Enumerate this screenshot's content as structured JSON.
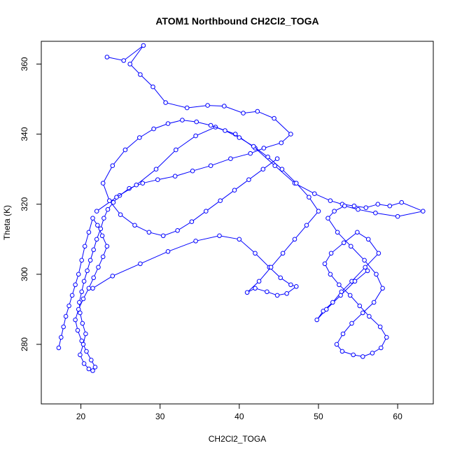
{
  "chart_data": {
    "type": "scatter",
    "title": "ATOM1 Northbound CH2Cl2_TOGA",
    "xlabel": "CH2Cl2_TOGA",
    "ylabel": "Theta (K)",
    "xlim": [
      15,
      64.5
    ],
    "ylim": [
      263,
      366.5
    ],
    "xticks": [
      20,
      30,
      40,
      50,
      60
    ],
    "yticks": [
      280,
      300,
      320,
      340,
      360
    ],
    "grid": false,
    "legend": "none",
    "color": "#0000ff",
    "series": [
      {
        "x": [
          23.3,
          25.4,
          27.9,
          26.2,
          27.5,
          29.1,
          30.7,
          33.4,
          36.0,
          38.1,
          40.5,
          42.3,
          44.4,
          46.5,
          45.3,
          43.1,
          41.4,
          38.9,
          36.4,
          34.1,
          31.9,
          29.7,
          27.8,
          26.1,
          24.9,
          24.1,
          23.4,
          22.9,
          22.5,
          22.0,
          21.6,
          21.2,
          20.8,
          20.4,
          20.1,
          19.8,
          19.9,
          20.2,
          20.6,
          20.3,
          19.9,
          20.4,
          21.0,
          21.5,
          21.8,
          21.3,
          20.7,
          20.1,
          19.6,
          19.3,
          19.7,
          20.3,
          21.0,
          21.6,
          22.2,
          22.8,
          23.3,
          22.7,
          22.1,
          21.5,
          21.0,
          20.5,
          20.1,
          19.7,
          19.3,
          18.9,
          18.5,
          18.1,
          17.8,
          17.5,
          17.2
        ],
        "y": [
          362.0,
          361.0,
          365.3,
          360.0,
          357.0,
          353.5,
          349.0,
          347.5,
          348.2,
          348.0,
          346.0,
          346.5,
          344.5,
          340.0,
          337.5,
          336.0,
          334.5,
          333.0,
          331.0,
          329.5,
          328.0,
          327.0,
          326.0,
          324.5,
          322.5,
          320.5,
          318.5,
          316.0,
          313.0,
          310.0,
          307.0,
          304.0,
          301.0,
          298.0,
          295.0,
          292.0,
          289.0,
          286.0,
          283.0,
          280.0,
          277.0,
          274.5,
          273.0,
          272.5,
          273.5,
          275.5,
          278.0,
          281.0,
          284.0,
          287.0,
          290.0,
          293.0,
          296.0,
          299.0,
          302.0,
          305.0,
          308.0,
          311.0,
          314.0,
          316.0,
          312.0,
          308.0,
          304.0,
          300.0,
          297.0,
          294.0,
          291.0,
          288.0,
          285.0,
          282.0,
          279.0
        ]
      },
      {
        "x": [
          22.0,
          24.5,
          27.0,
          29.5,
          32.0,
          34.5,
          37.0,
          39.5,
          42.0,
          44.5,
          47.0,
          49.5,
          51.5,
          53.0,
          54.5,
          56.0,
          57.5,
          59.0,
          60.5,
          63.2,
          60.0,
          57.2,
          55.0,
          53.3,
          52.0,
          51.2,
          52.4,
          54.1,
          55.8,
          57.3,
          58.1,
          57.0,
          55.6,
          54.2,
          53.1,
          52.3,
          53.0,
          54.4,
          55.6,
          56.8,
          57.9,
          58.6,
          57.8,
          56.4,
          55.2,
          54.0,
          52.6,
          51.5,
          50.8,
          51.6,
          53.2,
          54.9,
          56.3,
          57.6,
          55.9,
          54.2,
          52.9,
          51.8,
          50.6,
          49.8,
          51.0,
          52.8,
          54.6,
          56.2
        ],
        "y": [
          318.0,
          322.0,
          325.5,
          330.0,
          335.5,
          339.5,
          342.0,
          340.0,
          336.0,
          331.0,
          326.0,
          323.0,
          321.0,
          320.0,
          319.5,
          319.0,
          320.0,
          319.5,
          320.5,
          318.0,
          316.5,
          317.5,
          318.5,
          319.5,
          318.0,
          316.0,
          312.0,
          308.0,
          304.0,
          300.0,
          296.0,
          292.0,
          289.0,
          286.0,
          283.0,
          280.0,
          278.0,
          277.0,
          276.5,
          277.5,
          279.0,
          282.0,
          285.0,
          288.0,
          291.0,
          294.0,
          297.0,
          300.0,
          303.0,
          306.0,
          309.0,
          312.0,
          310.0,
          306.0,
          302.0,
          298.0,
          295.0,
          292.0,
          289.5,
          287.0,
          290.0,
          294.0,
          298.0,
          301.0
        ]
      },
      {
        "x": [
          21.5,
          24.0,
          27.5,
          31.0,
          34.5,
          37.5,
          40.0,
          42.0,
          43.8,
          45.2,
          46.5,
          47.2,
          46.0,
          44.8,
          43.5,
          42.0,
          41.0,
          42.5,
          44.0,
          45.5,
          47.0,
          48.5,
          50.0,
          48.8,
          47.2,
          45.4,
          43.6,
          41.8,
          40.0,
          38.2,
          36.4,
          34.6,
          32.8,
          31.0,
          29.2,
          27.4,
          25.6,
          24.0,
          22.8,
          23.6,
          25.0,
          26.8,
          28.6,
          30.4,
          32.2,
          34.0,
          35.8,
          37.6,
          39.4,
          41.2,
          43.0,
          44.8
        ],
        "y": [
          296.0,
          299.5,
          303.0,
          306.5,
          309.5,
          311.0,
          310.0,
          306.0,
          302.0,
          299.0,
          297.0,
          296.5,
          294.5,
          294.0,
          295.0,
          296.0,
          294.8,
          298.0,
          302.0,
          306.0,
          310.0,
          314.0,
          318.0,
          322.0,
          326.0,
          330.0,
          333.5,
          336.5,
          339.0,
          341.0,
          342.5,
          343.5,
          344.0,
          343.0,
          341.5,
          339.0,
          335.5,
          331.0,
          326.0,
          321.0,
          317.0,
          314.0,
          312.0,
          311.0,
          312.5,
          315.0,
          318.0,
          321.0,
          324.0,
          327.0,
          330.0,
          333.0
        ]
      }
    ]
  }
}
